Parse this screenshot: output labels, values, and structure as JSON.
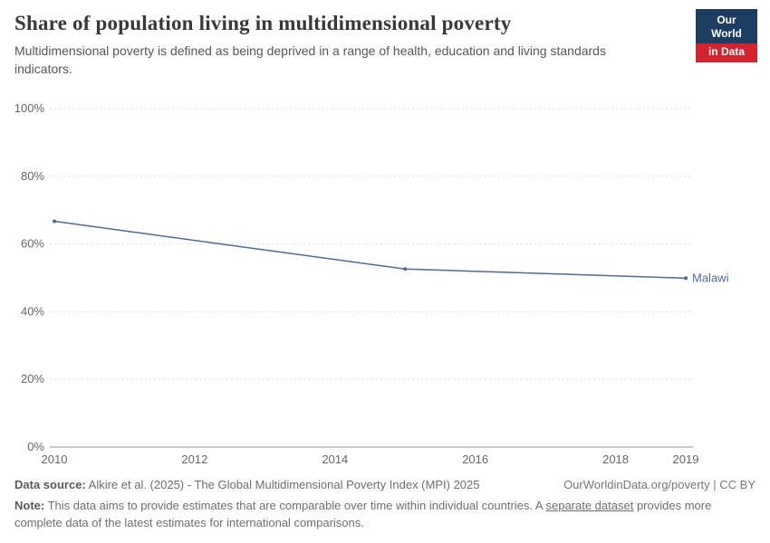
{
  "header": {
    "title": "Share of population living in multidimensional poverty",
    "subtitle": "Multidimensional poverty is defined as being deprived in a range of health, education and living standards indicators.",
    "logo": {
      "line1": "Our World",
      "line2": "in Data",
      "navy": "#1d3d63",
      "red": "#d1242f"
    }
  },
  "chart_data": {
    "type": "line",
    "title": "Share of population living in multidimensional poverty",
    "xlabel": "",
    "ylabel": "",
    "xlim": [
      2010,
      2019
    ],
    "ylim": [
      0,
      100
    ],
    "x_ticks": [
      2010,
      2012,
      2014,
      2016,
      2018,
      2019
    ],
    "y_ticks": [
      0,
      20,
      40,
      60,
      80,
      100
    ],
    "y_tick_suffix": "%",
    "grid": "horizontal-dashed",
    "legend_position": "end-of-line-label",
    "series": [
      {
        "name": "Malawi",
        "color": "#4c6a9c",
        "points": [
          {
            "x": 2010,
            "y": 66.7
          },
          {
            "x": 2015,
            "y": 52.6
          },
          {
            "x": 2019,
            "y": 49.9
          }
        ]
      }
    ]
  },
  "footer": {
    "source_label": "Data source:",
    "source_text": " Alkire et al. (2025) - The Global Multidimensional Poverty Index (MPI) 2025",
    "rights": "OurWorldinData.org/poverty | CC BY",
    "note_label": "Note:",
    "note_text_1": " This data aims to provide estimates that are comparable over time within individual countries. A ",
    "note_link": "separate dataset",
    "note_text_2": " provides more complete data of the latest estimates for international comparisons."
  }
}
